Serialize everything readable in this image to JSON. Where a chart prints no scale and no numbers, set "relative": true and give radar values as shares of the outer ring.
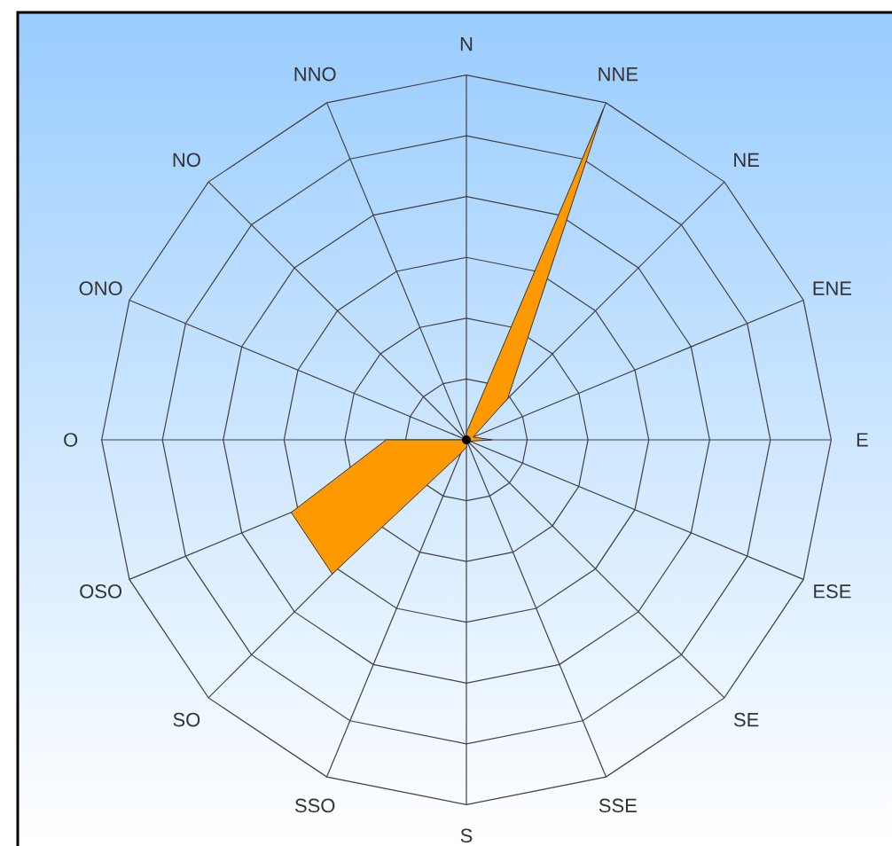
{
  "chart_data": {
    "type": "radar",
    "relative": true,
    "grid": true,
    "categories": [
      "N",
      "NNE",
      "NE",
      "ENE",
      "E",
      "ESE",
      "SE",
      "SSE",
      "S",
      "SSO",
      "SO",
      "OSO",
      "O",
      "ONO",
      "NO",
      "NNO"
    ],
    "series": [
      {
        "color": "#ff9900",
        "values": [
          0.02,
          0.98,
          0.16,
          0.02,
          0.07,
          0.01,
          0.01,
          0.01,
          0.02,
          0.04,
          0.52,
          0.52,
          0.22,
          0.0,
          0.0,
          0.0
        ]
      }
    ]
  }
}
